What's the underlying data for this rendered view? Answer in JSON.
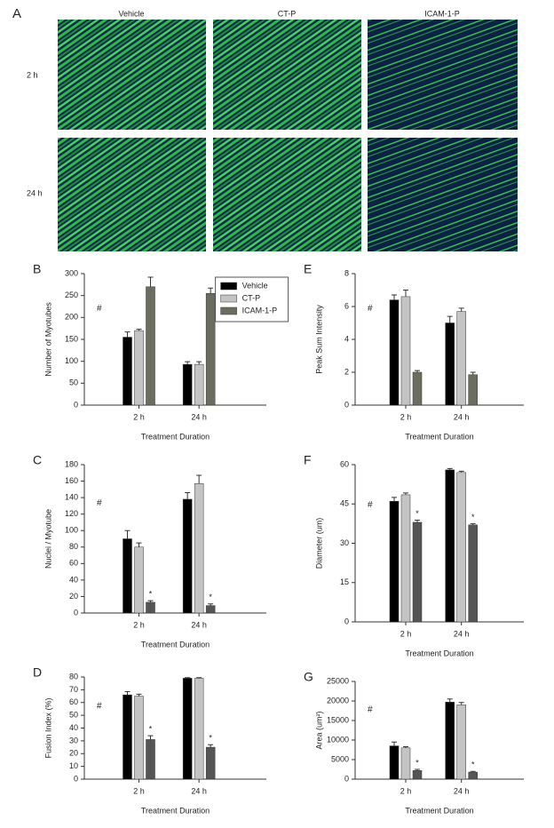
{
  "figure": {
    "panel_label": "A",
    "columns": [
      "Vehicle",
      "CT-P",
      "ICAM-1-P"
    ],
    "rows": [
      "2 h",
      "24 h"
    ]
  },
  "chart_data": [
    {
      "type": "bar",
      "panel_label": "B",
      "note": "#",
      "y_label": "Number of Myotubes",
      "x_label": "Treatment Duration",
      "categories": [
        "2 h",
        "24 h"
      ],
      "ylim": [
        0,
        300
      ],
      "yticks": [
        0,
        50,
        100,
        150,
        200,
        250,
        300
      ],
      "legend": true,
      "series": [
        {
          "name": "Vehicle",
          "color": "#000000",
          "values": [
            155,
            93
          ],
          "errors": [
            12,
            6
          ]
        },
        {
          "name": "CT-P",
          "color": "#c4c4c4",
          "values": [
            170,
            93
          ],
          "errors": [
            3,
            6
          ]
        },
        {
          "name": "ICAM-1-P",
          "color": "#6b6e5e",
          "values": [
            270,
            255
          ],
          "errors": [
            22,
            12
          ]
        }
      ]
    },
    {
      "type": "bar",
      "panel_label": "C",
      "note": "#",
      "y_label": "Nuclei / Myotube",
      "x_label": "Treatment Duration",
      "categories": [
        "2 h",
        "24 h"
      ],
      "ylim": [
        0,
        180
      ],
      "yticks": [
        0,
        20,
        40,
        60,
        80,
        100,
        120,
        140,
        160,
        180
      ],
      "legend": false,
      "series": [
        {
          "name": "Vehicle",
          "color": "#000000",
          "values": [
            90,
            138
          ],
          "errors": [
            10,
            8
          ]
        },
        {
          "name": "CT-P",
          "color": "#c4c4c4",
          "values": [
            80,
            157
          ],
          "errors": [
            5,
            10
          ]
        },
        {
          "name": "ICAM-1-P",
          "color": "#555555",
          "values": [
            13,
            9
          ],
          "errors": [
            2,
            2
          ],
          "annotations": [
            "*",
            "*"
          ]
        }
      ]
    },
    {
      "type": "bar",
      "panel_label": "D",
      "note": "#",
      "y_label": "Fusion Index (%)",
      "x_label": "Treatment Duration",
      "categories": [
        "2 h",
        "24 h"
      ],
      "ylim": [
        0,
        80
      ],
      "yticks": [
        0,
        10,
        20,
        30,
        40,
        50,
        60,
        70,
        80
      ],
      "legend": false,
      "series": [
        {
          "name": "Vehicle",
          "color": "#000000",
          "values": [
            66,
            79
          ],
          "errors": [
            2.5,
            0.5
          ]
        },
        {
          "name": "CT-P",
          "color": "#c4c4c4",
          "values": [
            65,
            79
          ],
          "errors": [
            1.5,
            0.5
          ]
        },
        {
          "name": "ICAM-1-P",
          "color": "#555555",
          "values": [
            31,
            25
          ],
          "errors": [
            3,
            2
          ],
          "annotations": [
            "*",
            "*"
          ]
        }
      ]
    },
    {
      "type": "bar",
      "panel_label": "E",
      "note": "#",
      "y_label": "Peak Sum Intensity",
      "x_label": "Treatment Duration",
      "categories": [
        "2 h",
        "24 h"
      ],
      "ylim": [
        0,
        8
      ],
      "yticks": [
        0,
        2,
        4,
        6,
        8
      ],
      "legend": false,
      "series": [
        {
          "name": "Vehicle",
          "color": "#000000",
          "values": [
            6.4,
            5.0
          ],
          "errors": [
            0.3,
            0.4
          ]
        },
        {
          "name": "CT-P",
          "color": "#c4c4c4",
          "values": [
            6.6,
            5.7
          ],
          "errors": [
            0.4,
            0.2
          ]
        },
        {
          "name": "ICAM-1-P",
          "color": "#6b6e5e",
          "values": [
            2.0,
            1.85
          ],
          "errors": [
            0.1,
            0.15
          ]
        }
      ]
    },
    {
      "type": "bar",
      "panel_label": "F",
      "note": "#",
      "y_label": "Diameter (um)",
      "x_label": "Treatment Duration",
      "categories": [
        "2 h",
        "24 h"
      ],
      "ylim": [
        0,
        60
      ],
      "yticks": [
        0,
        15,
        30,
        45,
        60
      ],
      "legend": false,
      "series": [
        {
          "name": "Vehicle",
          "color": "#000000",
          "values": [
            46,
            58
          ],
          "errors": [
            1.5,
            0.5
          ]
        },
        {
          "name": "CT-P",
          "color": "#c4c4c4",
          "values": [
            48.5,
            57
          ],
          "errors": [
            0.7,
            0.5
          ]
        },
        {
          "name": "ICAM-1-P",
          "color": "#555555",
          "values": [
            38,
            37
          ],
          "errors": [
            0.8,
            0.5
          ],
          "annotations": [
            "*",
            "*"
          ]
        }
      ]
    },
    {
      "type": "bar",
      "panel_label": "G",
      "note": "#",
      "y_label": "Area (um²)",
      "x_label": "Treatment Duration",
      "categories": [
        "2 h",
        "24 h"
      ],
      "ylim": [
        0,
        25000
      ],
      "yticks": [
        0,
        5000,
        10000,
        15000,
        20000,
        25000
      ],
      "legend": false,
      "series": [
        {
          "name": "Vehicle",
          "color": "#000000",
          "values": [
            8500,
            19700
          ],
          "errors": [
            1000,
            800
          ]
        },
        {
          "name": "CT-P",
          "color": "#c4c4c4",
          "values": [
            8000,
            19000
          ],
          "errors": [
            300,
            600
          ]
        },
        {
          "name": "ICAM-1-P",
          "color": "#555555",
          "values": [
            2200,
            1800
          ],
          "errors": [
            300,
            200
          ],
          "annotations": [
            "*",
            "*"
          ]
        }
      ]
    }
  ]
}
